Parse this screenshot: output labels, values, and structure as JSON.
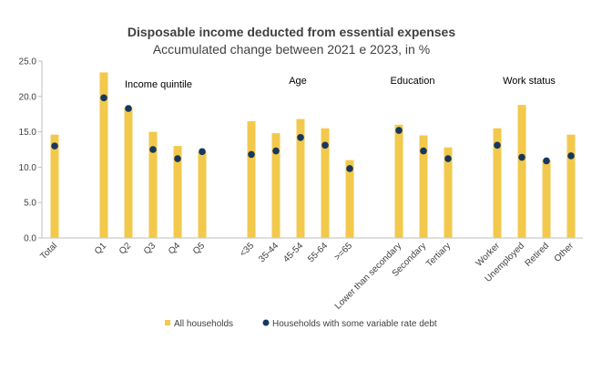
{
  "chart_data": {
    "type": "bar",
    "title": "Disposable income deducted from essential expenses",
    "subtitle": "Accumulated change between 2021 e 2023, in %",
    "ylim": [
      0,
      25
    ],
    "yticks": [
      "0.0",
      "5.0",
      "10.0",
      "15.0",
      "20.0",
      "25.0"
    ],
    "grid": false,
    "legend_position": "bottom",
    "categories": [
      "Total",
      "Q1",
      "Q2",
      "Q3",
      "Q4",
      "Q5",
      "<35",
      "35-44",
      "45-54",
      "55-64",
      ">=65",
      "Lower than secondary",
      "Secondary",
      "Tertiary",
      "Worker",
      "Unemployed",
      "Retired",
      "Other"
    ],
    "group_labels": [
      {
        "label": "Income quintile",
        "after": "Q1"
      },
      {
        "label": "Age",
        "after": "45-54"
      },
      {
        "label": "Education",
        "after": "Lower than secondary"
      },
      {
        "label": "Work status",
        "after": "Unemployed"
      }
    ],
    "series": [
      {
        "name": "All households",
        "kind": "bar",
        "color": "#F2C94C",
        "values": [
          14.6,
          23.4,
          18.4,
          15.0,
          13.0,
          12.2,
          16.5,
          14.8,
          16.8,
          15.5,
          11.0,
          16.0,
          14.5,
          12.8,
          15.5,
          18.8,
          11.0,
          14.6
        ]
      },
      {
        "name": "Households with some variable rate debt",
        "kind": "dot",
        "color": "#17375E",
        "values": [
          13.0,
          19.8,
          18.3,
          12.5,
          11.2,
          12.2,
          11.8,
          12.3,
          14.2,
          13.1,
          9.8,
          15.2,
          12.3,
          11.2,
          13.1,
          11.4,
          10.9,
          11.6
        ]
      }
    ]
  }
}
